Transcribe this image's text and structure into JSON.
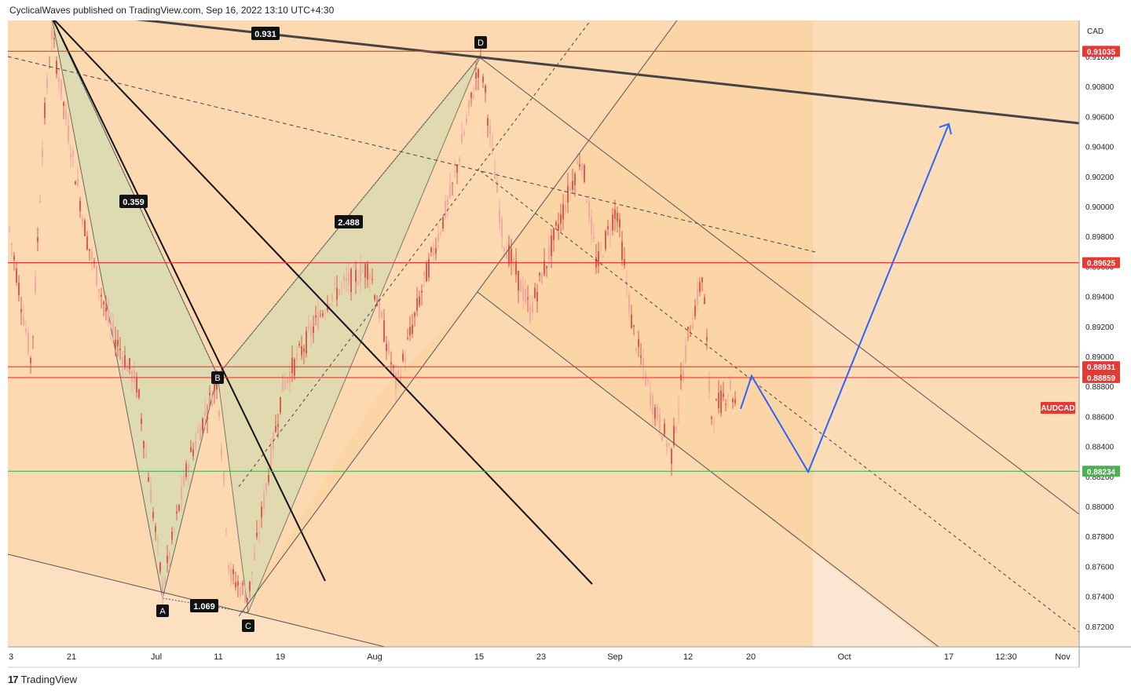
{
  "header": {
    "publisher_line": "CyclicalWaves published on TradingView.com, Sep 16, 2022 13:10 UTC+4:30"
  },
  "footer": {
    "brand": "TradingView",
    "logo_icon": "tradingview-logo-icon"
  },
  "colors": {
    "background": "#fde7d2",
    "projection_zone": "#fcd9b0",
    "channel_fill": "#fbd2a1",
    "harmonic_fill": "#d9dbb2",
    "candle_up": "#f2a9a0",
    "candle_down": "#e05b4f",
    "resistance_line": "#e53935",
    "support_line": "#4caf50",
    "projection_path": "#2962ff",
    "price_badge_red": "#e53935",
    "price_badge_green": "#4caf50"
  },
  "chart_data": {
    "type": "candlestick",
    "symbol": "AUDCAD",
    "currency_label": "CAD",
    "x_tick_labels": [
      "3",
      "21",
      "Jul",
      "11",
      "19",
      "Aug",
      "15",
      "23",
      "Sep",
      "12",
      "20",
      "Oct",
      "17",
      "12:30",
      "Nov"
    ],
    "y_tick_labels": [
      "0.91000",
      "0.90800",
      "0.90600",
      "0.90400",
      "0.90200",
      "0.90000",
      "0.89800",
      "0.89600",
      "0.89400",
      "0.89200",
      "0.89000",
      "0.88800",
      "0.88600",
      "0.88400",
      "0.88200",
      "0.88000",
      "0.87800",
      "0.87600",
      "0.87400",
      "0.87200"
    ],
    "ylim": [
      0.871,
      0.9125
    ],
    "horizontal_levels": [
      {
        "price": 0.91035,
        "label": "0.91035",
        "color": "#e53935"
      },
      {
        "price": 0.89625,
        "label": "0.89625",
        "color": "#e53935"
      },
      {
        "price": 0.88931,
        "label": "0.88931",
        "color": "#e53935"
      },
      {
        "price": 0.88859,
        "label": "0.88859",
        "color": "#e53935"
      },
      {
        "price": 0.88234,
        "label": "0.88234",
        "color": "#4caf50"
      }
    ],
    "last_price_label": "AUDCAD",
    "harmonic_points": [
      {
        "label": "A",
        "date": "Jun 30",
        "price": 0.8743
      },
      {
        "label": "B",
        "date": "Jul 11",
        "price": 0.889
      },
      {
        "label": "C",
        "date": "Jul 14",
        "price": 0.8733
      },
      {
        "label": "D",
        "date": "Aug 15",
        "price": 0.9103
      }
    ],
    "ratio_labels": [
      "0.931",
      "0.359",
      "2.488",
      "1.069"
    ],
    "projection_path": [
      {
        "date": "Sep 16",
        "price": 0.8865
      },
      {
        "date": "Sep 20",
        "price": 0.8887
      },
      {
        "date": "Sep 29",
        "price": 0.8823
      },
      {
        "date": "Oct 18",
        "price": 0.9055
      }
    ]
  }
}
